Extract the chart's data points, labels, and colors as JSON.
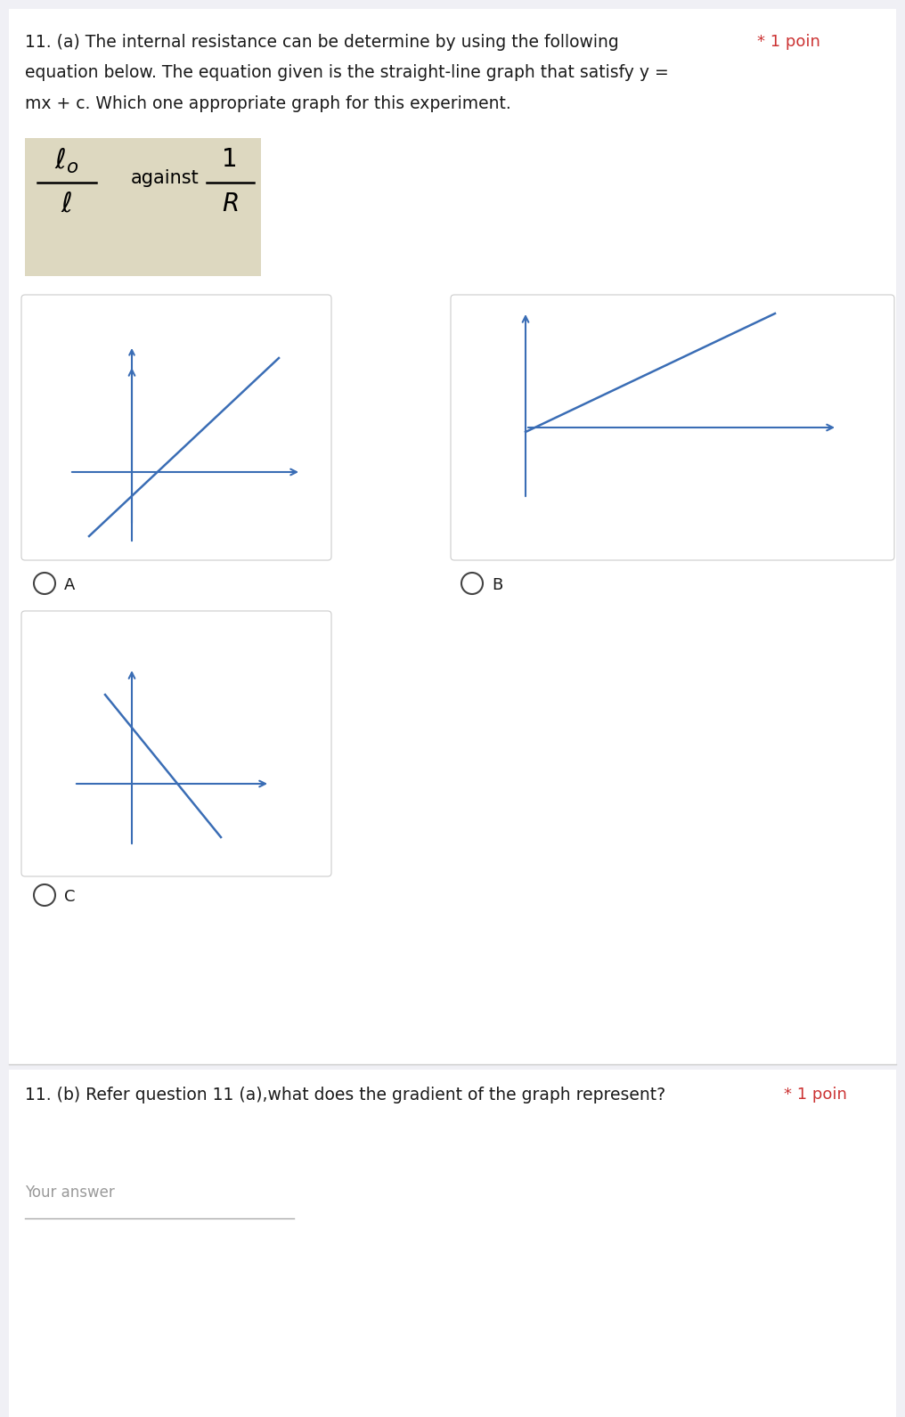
{
  "bg_color": "#f0f0f5",
  "card_bg": "#ffffff",
  "text_color": "#1a1a1a",
  "blue_color": "#3a6db5",
  "question_text_1a": "11. (a) The internal resistance can be determine by using the following",
  "star_text": "* 1 poin",
  "star_color": "#cc3333",
  "line2": "equation below. The equation given is the straight-line graph that satisfy y =",
  "line3": "mx + c. Which one appropriate graph for this experiment.",
  "formula_bg": "#ddd8c0",
  "option_A_label": "A",
  "option_B_label": "B",
  "option_C_label": "C",
  "question_text_1b": "11. (b) Refer question 11 (a),what does the gradient of the graph represent?",
  "star_text_b": "* 1 poin",
  "your_answer": "Your answer",
  "radio_color": "#444444",
  "border_color": "#cccccc",
  "separator_color": "#cccccc"
}
